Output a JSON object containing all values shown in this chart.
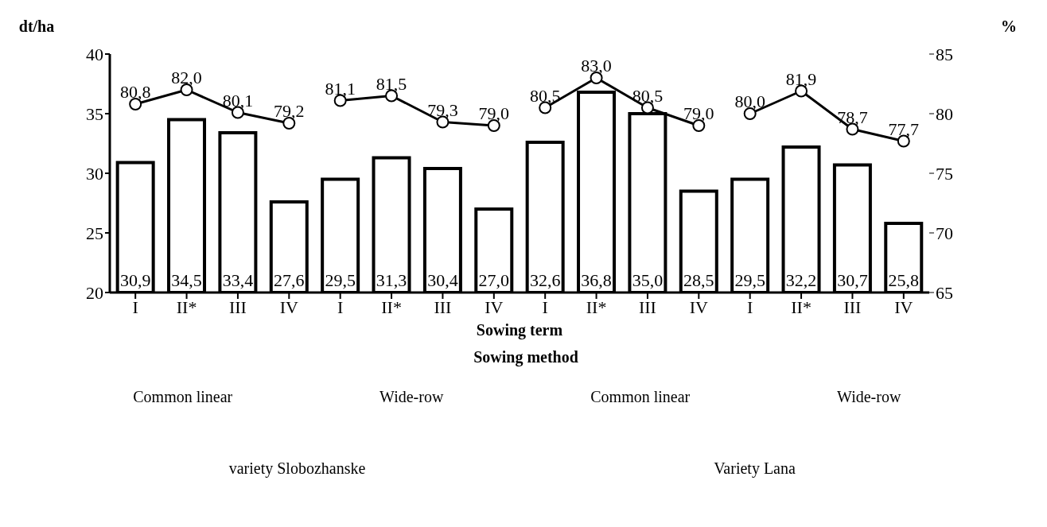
{
  "chart_data": {
    "type": "bar",
    "ylabel": "dt/ha",
    "y2label": "%",
    "xlabel": "Sowing term",
    "categories": [
      "I",
      "II*",
      "III",
      "IV",
      "I",
      "II*",
      "III",
      "IV",
      "I",
      "II*",
      "III",
      "IV",
      "I",
      "II*",
      "III",
      "IV"
    ],
    "series": [
      {
        "color": "#ffffff",
        "values": [
          30.9,
          34.5,
          33.4,
          27.6,
          29.5,
          31.3,
          30.4,
          27.0,
          32.6,
          36.8,
          35.0,
          28.5,
          29.5,
          32.2,
          30.7,
          25.8
        ],
        "value_labels": [
          "30,9",
          "34,5",
          "33,4",
          "27,6",
          "29,5",
          "31,3",
          "30,4",
          "27,0",
          "32,6",
          "36,8",
          "35,0",
          "28,5",
          "29,5",
          "32,2",
          "30,7",
          "25,8"
        ]
      },
      {
        "type": "line",
        "axis": "y2",
        "color": "#000000",
        "values": [
          80.8,
          82.0,
          80.1,
          79.2,
          null,
          null,
          null,
          null,
          null,
          null,
          null,
          null,
          null,
          null,
          null,
          null
        ],
        "value_labels": [
          "80,8",
          "82,0",
          "80,1",
          "79,2",
          null,
          null,
          null,
          null,
          null,
          null,
          null,
          null,
          null,
          null,
          null,
          null
        ]
      },
      {
        "type": "line",
        "axis": "y2",
        "color": "#000000",
        "values": [
          null,
          null,
          null,
          null,
          81.1,
          81.5,
          79.3,
          79.0,
          null,
          null,
          null,
          null,
          null,
          null,
          null,
          null
        ],
        "value_labels": [
          null,
          null,
          null,
          null,
          "81,1",
          "81,5",
          "79,3",
          "79,0",
          null,
          null,
          null,
          null,
          null,
          null,
          null,
          null
        ]
      },
      {
        "type": "line",
        "axis": "y2",
        "color": "#000000",
        "values": [
          null,
          null,
          null,
          null,
          null,
          null,
          null,
          null,
          80.5,
          83.0,
          80.5,
          79.0,
          null,
          null,
          null,
          null
        ],
        "value_labels": [
          null,
          null,
          null,
          null,
          null,
          null,
          null,
          null,
          "80,5",
          "83,0",
          "80,5",
          "79,0",
          null,
          null,
          null,
          null
        ]
      },
      {
        "type": "line",
        "axis": "y2",
        "color": "#000000",
        "values": [
          null,
          null,
          null,
          null,
          null,
          null,
          null,
          null,
          null,
          null,
          null,
          null,
          80.0,
          81.9,
          78.7,
          77.7
        ],
        "value_labels": [
          null,
          null,
          null,
          null,
          null,
          null,
          null,
          null,
          null,
          null,
          null,
          null,
          "80,0",
          "81,9",
          "78,7",
          "77,7"
        ]
      }
    ],
    "ylim": [
      20,
      40
    ],
    "yticks": [
      20,
      25,
      30,
      35,
      40
    ],
    "y2lim": [
      65,
      85
    ],
    "y2ticks": [
      65,
      70,
      75,
      80,
      85
    ],
    "marker": "circle",
    "line_style": "solid",
    "grid": false,
    "annotations": [
      "Sowing method",
      "Common linear",
      "Wide-row",
      "Common linear",
      "Wide-row",
      "variety Slobozhanske",
      "Variety Lana"
    ]
  }
}
